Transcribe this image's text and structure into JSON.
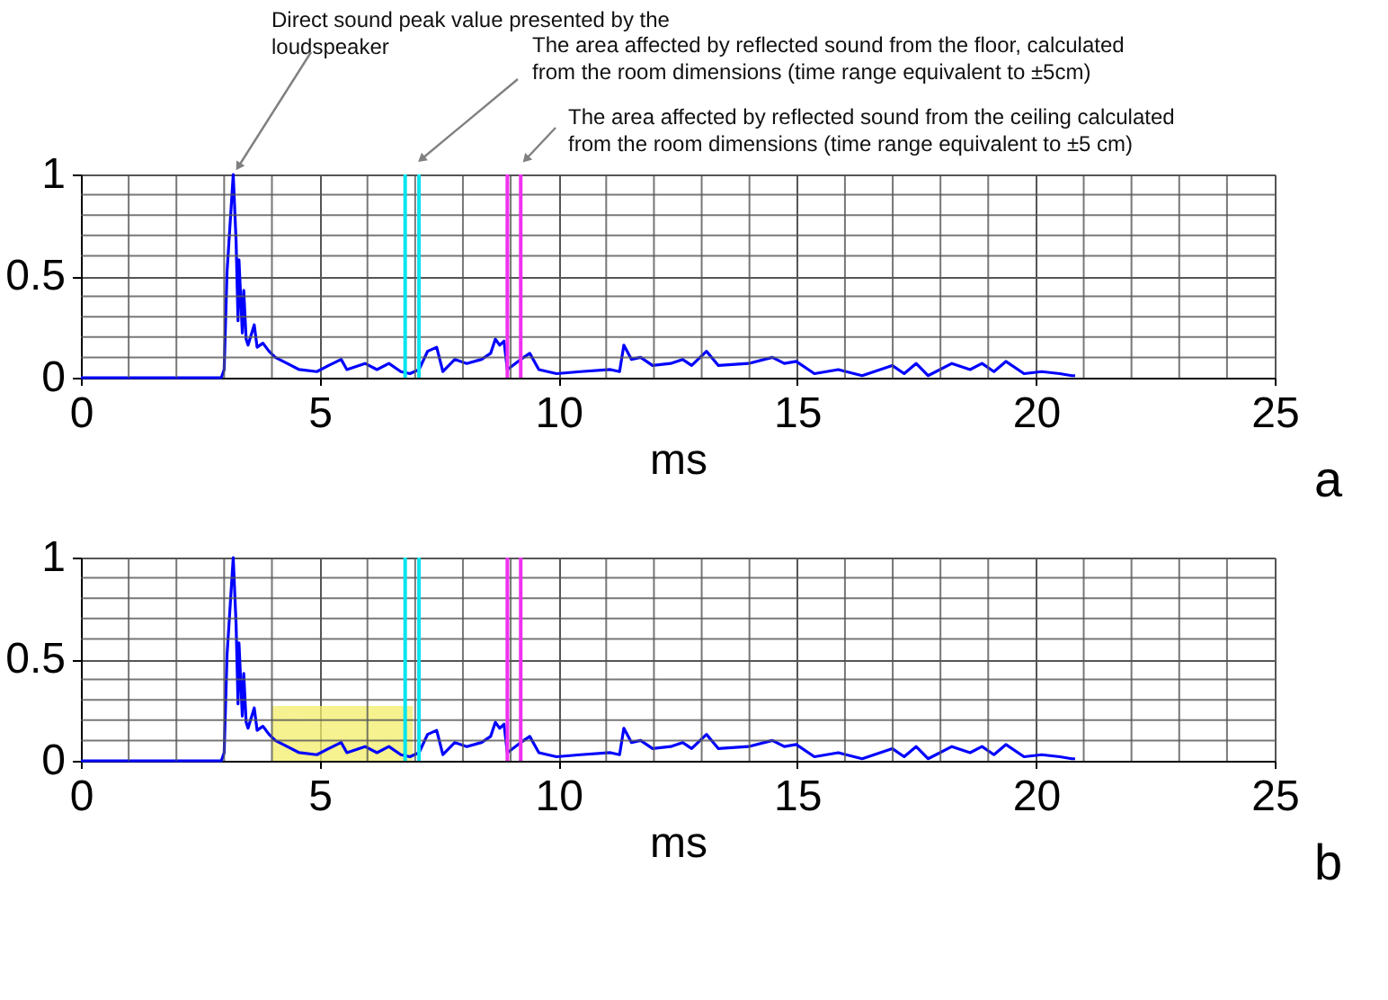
{
  "chart_data": [
    {
      "type": "line",
      "xlabel": "ms",
      "xlim": [
        0,
        25
      ],
      "ylim": [
        0,
        1
      ],
      "xticks": [
        0,
        {
          "value": 1,
          "label": null
        },
        {
          "value": 2,
          "label": null
        },
        {
          "value": 3,
          "label": null
        },
        {
          "value": 4,
          "label": null
        },
        5,
        {
          "value": 6,
          "label": null
        },
        {
          "value": 7,
          "label": null
        },
        {
          "value": 8,
          "label": null
        },
        {
          "value": 9,
          "label": null
        },
        10,
        {
          "value": 11,
          "label": null
        },
        {
          "value": 12,
          "label": null
        },
        {
          "value": 13,
          "label": null
        },
        {
          "value": 14,
          "label": null
        },
        15,
        {
          "value": 16,
          "label": null
        },
        {
          "value": 17,
          "label": null
        },
        {
          "value": 18,
          "label": null
        },
        {
          "value": 19,
          "label": null
        },
        20,
        {
          "value": 21,
          "label": null
        },
        {
          "value": 22,
          "label": null
        },
        {
          "value": 23,
          "label": null
        },
        {
          "value": 24,
          "label": null
        },
        25
      ],
      "yticks": [
        0,
        {
          "value": 0.1,
          "label": null
        },
        {
          "value": 0.2,
          "label": null
        },
        {
          "value": 0.3,
          "label": null
        },
        {
          "value": 0.4,
          "label": null
        },
        0.5,
        {
          "value": 0.6,
          "label": null
        },
        {
          "value": 0.7,
          "label": null
        },
        {
          "value": 0.8,
          "label": null
        },
        {
          "value": 0.9,
          "label": null
        },
        1
      ],
      "grid": true,
      "series": [
        {
          "color": "#0000ff",
          "x": [
            0,
            2.94,
            3.0,
            3.06,
            3.19,
            3.25,
            3.29,
            3.31,
            3.38,
            3.41,
            3.46,
            3.5,
            3.63,
            3.69,
            3.81,
            3.94,
            4.07,
            4.32,
            4.57,
            4.94,
            5.19,
            5.45,
            5.57,
            5.95,
            6.2,
            6.45,
            6.7,
            6.89,
            7.08,
            7.26,
            7.45,
            7.58,
            7.83,
            8.08,
            8.39,
            8.58,
            8.68,
            8.77,
            8.86,
            8.93,
            9.21,
            9.4,
            9.59,
            9.96,
            10.46,
            11.09,
            11.28,
            11.37,
            11.53,
            11.72,
            11.97,
            12.35,
            12.6,
            12.79,
            13.1,
            13.35,
            13.98,
            14.48,
            14.73,
            14.98,
            15.36,
            15.86,
            16.36,
            16.99,
            17.24,
            17.49,
            17.74,
            18.24,
            18.62,
            18.87,
            19.12,
            19.37,
            19.75,
            20.12,
            20.5,
            20.75,
            20.82
          ],
          "values": [
            0,
            0,
            0.04,
            0.52,
            1.0,
            0.67,
            0.28,
            0.58,
            0.22,
            0.43,
            0.19,
            0.16,
            0.26,
            0.15,
            0.17,
            0.13,
            0.1,
            0.07,
            0.04,
            0.03,
            0.06,
            0.09,
            0.04,
            0.07,
            0.04,
            0.07,
            0.03,
            0.02,
            0.04,
            0.13,
            0.15,
            0.03,
            0.09,
            0.07,
            0.09,
            0.12,
            0.19,
            0.16,
            0.18,
            0.04,
            0.09,
            0.12,
            0.04,
            0.02,
            0.03,
            0.04,
            0.03,
            0.16,
            0.09,
            0.1,
            0.06,
            0.07,
            0.09,
            0.06,
            0.13,
            0.06,
            0.07,
            0.1,
            0.07,
            0.08,
            0.02,
            0.04,
            0.01,
            0.06,
            0.02,
            0.07,
            0.01,
            0.07,
            0.04,
            0.07,
            0.03,
            0.08,
            0.02,
            0.03,
            0.02,
            0.01,
            0.01
          ]
        }
      ],
      "ref_lines": [
        {
          "axis": "x",
          "value": 6.79,
          "color": "#00e5f0"
        },
        {
          "axis": "x",
          "value": 7.08,
          "color": "#00e5f0"
        },
        {
          "axis": "x",
          "value": 8.93,
          "color": "#f030f0"
        },
        {
          "axis": "x",
          "value": 9.21,
          "color": "#f030f0"
        }
      ],
      "annotations": [
        "Direct sound peak value presented by the loudspeaker",
        "The area affected by reflected sound from the floor, calculated from the room dimensions (time range equivalent to ±5cm)",
        "The area affected by reflected sound from the ceiling calculated from the room dimensions (time range equivalent to ±5 cm)",
        "a"
      ]
    },
    {
      "type": "line",
      "xlabel": "ms",
      "xlim": [
        0,
        25
      ],
      "ylim": [
        0,
        1
      ],
      "xticks": [
        0,
        {
          "value": 1,
          "label": null
        },
        {
          "value": 2,
          "label": null
        },
        {
          "value": 3,
          "label": null
        },
        {
          "value": 4,
          "label": null
        },
        5,
        {
          "value": 6,
          "label": null
        },
        {
          "value": 7,
          "label": null
        },
        {
          "value": 8,
          "label": null
        },
        {
          "value": 9,
          "label": null
        },
        10,
        {
          "value": 11,
          "label": null
        },
        {
          "value": 12,
          "label": null
        },
        {
          "value": 13,
          "label": null
        },
        {
          "value": 14,
          "label": null
        },
        15,
        {
          "value": 16,
          "label": null
        },
        {
          "value": 17,
          "label": null
        },
        {
          "value": 18,
          "label": null
        },
        {
          "value": 19,
          "label": null
        },
        20,
        {
          "value": 21,
          "label": null
        },
        {
          "value": 22,
          "label": null
        },
        {
          "value": 23,
          "label": null
        },
        {
          "value": 24,
          "label": null
        },
        25
      ],
      "yticks": [
        0,
        {
          "value": 0.1,
          "label": null
        },
        {
          "value": 0.2,
          "label": null
        },
        {
          "value": 0.3,
          "label": null
        },
        {
          "value": 0.4,
          "label": null
        },
        0.5,
        {
          "value": 0.6,
          "label": null
        },
        {
          "value": 0.7,
          "label": null
        },
        {
          "value": 0.8,
          "label": null
        },
        {
          "value": 0.9,
          "label": null
        },
        1
      ],
      "grid": true,
      "series": [
        {
          "type": "area",
          "color": "#f2ee6a",
          "x": [
            4.0,
            6.95
          ],
          "values": [
            0.27,
            0.27
          ]
        },
        {
          "color": "#0000ff",
          "x": [
            0,
            2.94,
            3.0,
            3.06,
            3.19,
            3.25,
            3.29,
            3.31,
            3.38,
            3.41,
            3.46,
            3.5,
            3.63,
            3.69,
            3.81,
            3.94,
            4.07,
            4.32,
            4.57,
            4.94,
            5.19,
            5.45,
            5.57,
            5.95,
            6.2,
            6.45,
            6.7,
            6.89,
            7.08,
            7.26,
            7.45,
            7.58,
            7.83,
            8.08,
            8.39,
            8.58,
            8.68,
            8.77,
            8.86,
            8.93,
            9.21,
            9.4,
            9.59,
            9.96,
            10.46,
            11.09,
            11.28,
            11.37,
            11.53,
            11.72,
            11.97,
            12.35,
            12.6,
            12.79,
            13.1,
            13.35,
            13.98,
            14.48,
            14.73,
            14.98,
            15.36,
            15.86,
            16.36,
            16.99,
            17.24,
            17.49,
            17.74,
            18.24,
            18.62,
            18.87,
            19.12,
            19.37,
            19.75,
            20.12,
            20.5,
            20.75,
            20.82
          ],
          "values": [
            0,
            0,
            0.04,
            0.52,
            1.0,
            0.67,
            0.28,
            0.58,
            0.22,
            0.43,
            0.19,
            0.16,
            0.26,
            0.15,
            0.17,
            0.13,
            0.1,
            0.07,
            0.04,
            0.03,
            0.06,
            0.09,
            0.04,
            0.07,
            0.04,
            0.07,
            0.03,
            0.02,
            0.04,
            0.13,
            0.15,
            0.03,
            0.09,
            0.07,
            0.09,
            0.12,
            0.19,
            0.16,
            0.18,
            0.04,
            0.09,
            0.12,
            0.04,
            0.02,
            0.03,
            0.04,
            0.03,
            0.16,
            0.09,
            0.1,
            0.06,
            0.07,
            0.09,
            0.06,
            0.13,
            0.06,
            0.07,
            0.1,
            0.07,
            0.08,
            0.02,
            0.04,
            0.01,
            0.06,
            0.02,
            0.07,
            0.01,
            0.07,
            0.04,
            0.07,
            0.03,
            0.08,
            0.02,
            0.03,
            0.02,
            0.01,
            0.01
          ]
        }
      ],
      "ref_lines": [
        {
          "axis": "x",
          "value": 6.79,
          "color": "#00e5f0"
        },
        {
          "axis": "x",
          "value": 7.08,
          "color": "#00e5f0"
        },
        {
          "axis": "x",
          "value": 8.93,
          "color": "#f030f0"
        },
        {
          "axis": "x",
          "value": 9.21,
          "color": "#f030f0"
        }
      ],
      "annotations": [
        "b"
      ]
    }
  ]
}
